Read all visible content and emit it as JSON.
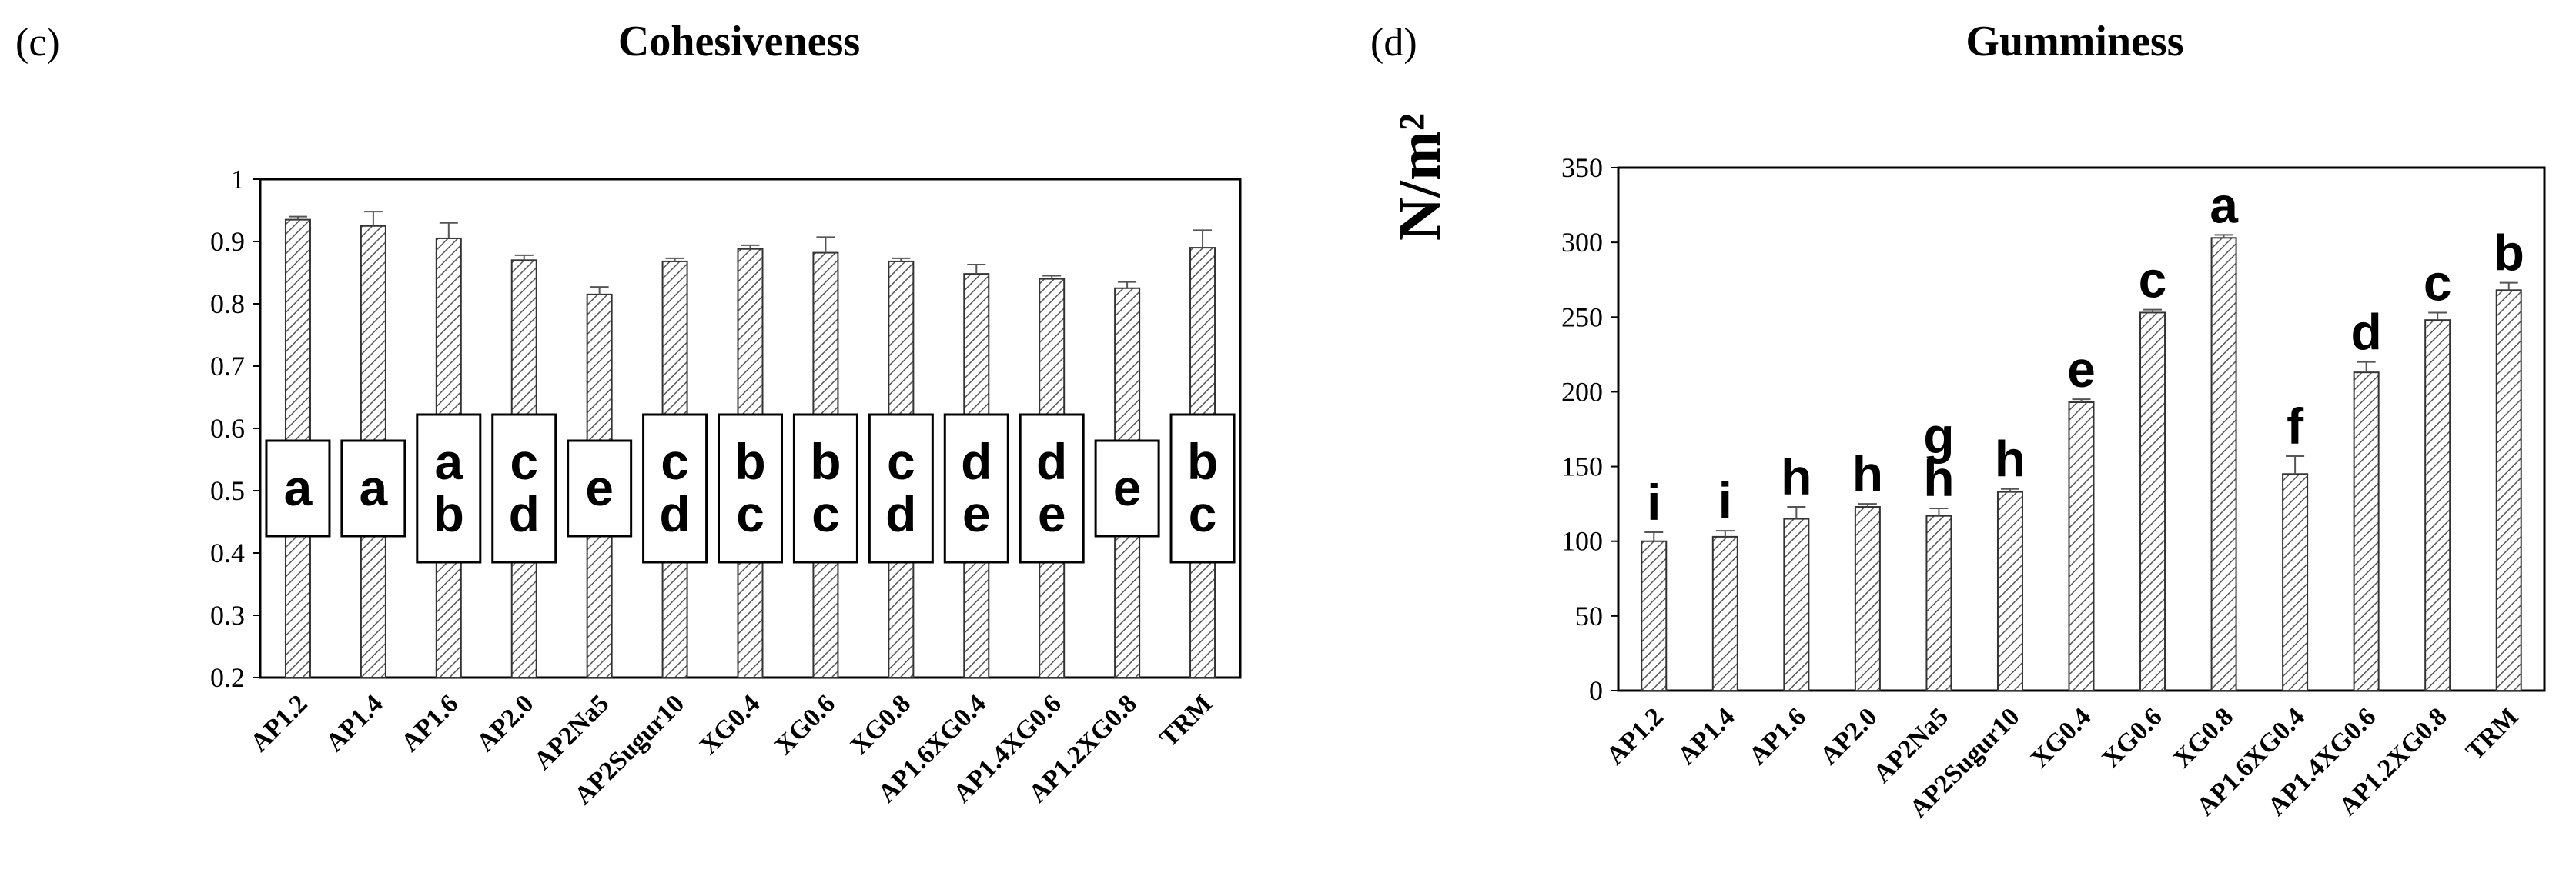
{
  "chart_data": [
    {
      "type": "bar",
      "panel_label": "(c)",
      "title": "Cohesiveness",
      "ylabel": "",
      "xlabel": "",
      "ylim": [
        0.2,
        1
      ],
      "yticks": [
        "0.2",
        "0.3",
        "0.4",
        "0.5",
        "0.6",
        "0.7",
        "0.8",
        "0.9",
        "1"
      ],
      "categories": [
        "AP1.2",
        "AP1.4",
        "AP1.6",
        "AP2.0",
        "AP2Na5",
        "AP2Sugur10",
        "XG0.4",
        "XG0.6",
        "XG0.8",
        "AP1.6XG0.4",
        "AP1.4XG0.6",
        "AP1.2XG0.8",
        "TRM"
      ],
      "values": [
        0.935,
        0.925,
        0.905,
        0.87,
        0.815,
        0.868,
        0.888,
        0.882,
        0.868,
        0.848,
        0.84,
        0.825,
        0.89
      ],
      "errors": [
        0.005,
        0.023,
        0.025,
        0.008,
        0.012,
        0.005,
        0.006,
        0.025,
        0.005,
        0.015,
        0.005,
        0.01,
        0.028
      ],
      "significance": [
        [
          "a"
        ],
        [
          "a"
        ],
        [
          "a",
          "b"
        ],
        [
          "c",
          "d"
        ],
        [
          "e"
        ],
        [
          "c",
          "d"
        ],
        [
          "b",
          "c"
        ],
        [
          "b",
          "c"
        ],
        [
          "c",
          "d"
        ],
        [
          "d",
          "e"
        ],
        [
          "d",
          "e"
        ],
        [
          "e"
        ],
        [
          "b",
          "c"
        ]
      ]
    },
    {
      "type": "bar",
      "panel_label": "(d)",
      "title": "Gumminess",
      "ylabel": "N/m²",
      "xlabel": "",
      "ylim": [
        0,
        350
      ],
      "yticks": [
        "0",
        "50",
        "100",
        "150",
        "200",
        "250",
        "300",
        "350"
      ],
      "categories": [
        "AP1.2",
        "AP1.4",
        "AP1.6",
        "AP2.0",
        "AP2Na5",
        "AP2Sugur10",
        "XG0.4",
        "XG0.6",
        "XG0.8",
        "AP1.6XG0.4",
        "AP1.4XG0.6",
        "AP1.2XG0.8",
        "TRM"
      ],
      "values": [
        100,
        103,
        115,
        123,
        117,
        133,
        193,
        253,
        303,
        145,
        213,
        248,
        268
      ],
      "errors": [
        6,
        4,
        8,
        2,
        5,
        2,
        2,
        2,
        2,
        12,
        7,
        5,
        5
      ],
      "significance": [
        [
          "i"
        ],
        [
          "i"
        ],
        [
          "h"
        ],
        [
          "h"
        ],
        [
          "g",
          "h"
        ],
        [
          "h"
        ],
        [
          "e"
        ],
        [
          "c"
        ],
        [
          "a"
        ],
        [
          "f"
        ],
        [
          "d"
        ],
        [
          "c"
        ],
        [
          "b"
        ]
      ]
    }
  ]
}
